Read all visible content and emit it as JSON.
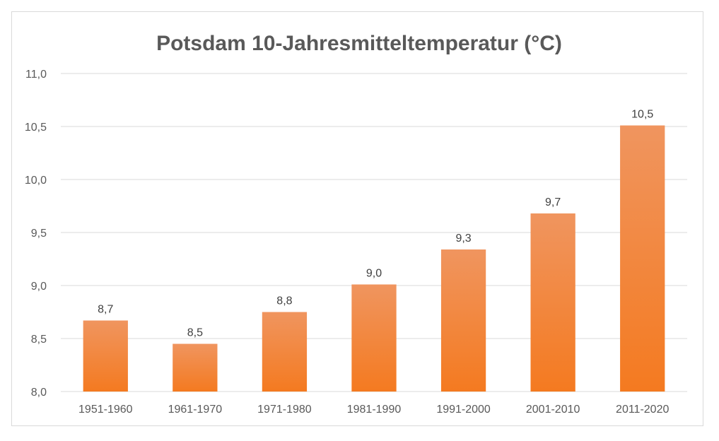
{
  "chart_data": {
    "type": "bar",
    "title": "Potsdam 10-Jahresmitteltemperatur (°C)",
    "xlabel": "",
    "ylabel": "",
    "categories": [
      "1951-1960",
      "1961-1970",
      "1971-1980",
      "1981-1990",
      "1991-2000",
      "2001-2010",
      "2011-2020"
    ],
    "values": [
      8.67,
      8.45,
      8.75,
      9.01,
      9.34,
      9.68,
      10.51
    ],
    "data_labels": [
      "8,7",
      "8,5",
      "8,8",
      "9,0",
      "9,3",
      "9,7",
      "10,5"
    ],
    "ylim": [
      8.0,
      11.0
    ],
    "y_ticks": [
      8.0,
      8.5,
      9.0,
      9.5,
      10.0,
      10.5,
      11.0
    ],
    "y_tick_labels": [
      "8,0",
      "8,5",
      "9,0",
      "9,5",
      "10,0",
      "10,5",
      "11,0"
    ],
    "grid": true,
    "legend": "none",
    "colors": {
      "bar_top": "#F0955F",
      "bar_bottom": "#F47A20",
      "grid": "#d9d9d9",
      "text": "#595959"
    }
  }
}
